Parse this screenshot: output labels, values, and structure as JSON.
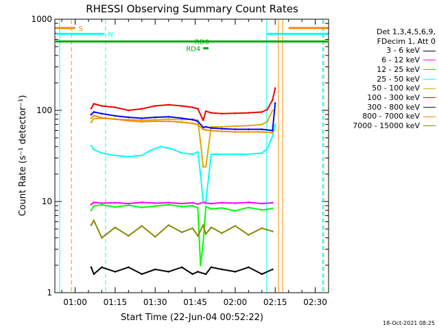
{
  "chart_data": {
    "type": "line",
    "title": "RHESSI Observing Summary Count Rates",
    "xlabel": "Start Time (22-Jun-04 00:52:22)",
    "ylabel": "Count Rate (s⁻¹ detector⁻¹)",
    "yscale": "log",
    "ylim": [
      1,
      1000
    ],
    "xlim_minutes": [
      52.4,
      155
    ],
    "x_ticks": [
      {
        "minute": 60,
        "label": "01:00"
      },
      {
        "minute": 75,
        "label": "01:15"
      },
      {
        "minute": 90,
        "label": "01:30"
      },
      {
        "minute": 105,
        "label": "01:45"
      },
      {
        "minute": 120,
        "label": "02:00"
      },
      {
        "minute": 135,
        "label": "02:15"
      },
      {
        "minute": 150,
        "label": "02:30"
      }
    ],
    "y_ticks": [
      {
        "value": 1,
        "label": "1"
      },
      {
        "value": 10,
        "label": "10"
      },
      {
        "value": 100,
        "label": "100"
      },
      {
        "value": 1000,
        "label": "1000"
      }
    ],
    "legend_header": [
      "Det 1,3,4,5,6,9,",
      "FDecim 1, Att 0"
    ],
    "series": [
      {
        "name": "3 - 6 keV",
        "color": "#000000",
        "x": [
          66,
          67,
          70,
          75,
          80,
          85,
          90,
          95,
          100,
          104,
          106,
          109,
          111,
          115,
          120,
          125,
          130,
          134
        ],
        "y": [
          1.9,
          1.6,
          1.9,
          1.7,
          1.9,
          1.6,
          1.8,
          1.7,
          1.9,
          1.6,
          1.7,
          1.6,
          1.9,
          1.8,
          1.7,
          1.9,
          1.6,
          1.8
        ]
      },
      {
        "name": "6 - 12 keV",
        "color": "#ff00ff",
        "x": [
          66,
          67,
          70,
          75,
          80,
          85,
          90,
          95,
          100,
          104,
          106,
          108,
          109,
          111,
          115,
          120,
          125,
          130,
          134
        ],
        "y": [
          9.3,
          9.8,
          9.6,
          9.7,
          9.5,
          9.8,
          9.6,
          9.7,
          9.5,
          9.7,
          9.4,
          9.8,
          9.6,
          9.5,
          9.7,
          9.6,
          9.8,
          9.5,
          9.7
        ]
      },
      {
        "name": "12 - 25 keV",
        "color": "#00ff00",
        "x": [
          66,
          67,
          70,
          75,
          80,
          85,
          90,
          95,
          100,
          104,
          106,
          107,
          108,
          109,
          111,
          115,
          120,
          125,
          130,
          134
        ],
        "y": [
          8.0,
          8.9,
          9.2,
          8.7,
          9.1,
          8.6,
          8.9,
          9.2,
          8.8,
          9.0,
          8.5,
          2.0,
          3.5,
          8.8,
          8.3,
          8.5,
          7.9,
          8.6,
          8.1,
          8.4
        ]
      },
      {
        "name": "25 - 50 keV",
        "color": "#00ffff",
        "x": [
          66,
          67,
          70,
          75,
          80,
          85,
          88,
          92,
          96,
          100,
          104,
          106,
          107,
          108,
          109,
          111,
          115,
          120,
          125,
          130,
          132,
          134,
          135
        ],
        "y": [
          41,
          37,
          34,
          32,
          31,
          32,
          36,
          40,
          38,
          34,
          33,
          35,
          20,
          10,
          10,
          33,
          33,
          33,
          33,
          34,
          38,
          52,
          70
        ]
      },
      {
        "name": "50 - 100 keV",
        "color": "#ddaa00",
        "x": [
          66,
          67,
          70,
          75,
          80,
          85,
          90,
          95,
          100,
          104,
          106,
          107,
          108,
          109,
          111,
          115,
          120,
          125,
          130,
          132,
          134
        ],
        "y": [
          74,
          81,
          82,
          80,
          79,
          78,
          79,
          80,
          79,
          80,
          78,
          45,
          24,
          24,
          66,
          66,
          67,
          68,
          70,
          75,
          100
        ]
      },
      {
        "name": "100 - 300 keV",
        "color": "#ee0000",
        "x": [
          66,
          67,
          70,
          75,
          80,
          85,
          90,
          95,
          100,
          104,
          106,
          108,
          109,
          111,
          115,
          120,
          125,
          130,
          132,
          134,
          135
        ],
        "y": [
          105,
          118,
          112,
          108,
          100,
          104,
          112,
          115,
          112,
          108,
          104,
          78,
          98,
          94,
          92,
          93,
          94,
          96,
          102,
          130,
          175
        ]
      },
      {
        "name": "300 - 800 keV",
        "color": "#0000ff",
        "x": [
          66,
          67,
          70,
          75,
          80,
          85,
          90,
          95,
          100,
          104,
          106,
          108,
          109,
          111,
          115,
          120,
          125,
          130,
          134,
          135
        ],
        "y": [
          90,
          96,
          92,
          87,
          84,
          82,
          84,
          85,
          82,
          79,
          76,
          65,
          66,
          64,
          63,
          62,
          62,
          62,
          60,
          120
        ]
      },
      {
        "name": "800 - 7000 keV",
        "color": "#ff8800",
        "x": [
          66,
          67,
          70,
          75,
          80,
          85,
          90,
          95,
          100,
          104,
          106,
          108,
          109,
          111,
          115,
          120,
          125,
          130,
          134
        ],
        "y": [
          82,
          88,
          83,
          80,
          77,
          75,
          76,
          76,
          74,
          72,
          70,
          62,
          61,
          60,
          59,
          58,
          58,
          58,
          57
        ]
      },
      {
        "name": "7000 - 15000 keV",
        "color": "#888800",
        "x": [
          66,
          67,
          70,
          75,
          80,
          85,
          90,
          95,
          100,
          104,
          106,
          108,
          109,
          111,
          115,
          120,
          125,
          130,
          134
        ],
        "y": [
          5.5,
          6.2,
          4.0,
          5.2,
          4.2,
          5.4,
          4.1,
          5.5,
          4.6,
          5.1,
          4.2,
          5.5,
          4.4,
          5.2,
          4.5,
          5.4,
          4.3,
          5.1,
          4.7
        ]
      }
    ],
    "annotations": [
      {
        "label": "S",
        "color": "#ff8800",
        "x_start": 53,
        "x_end": 60,
        "y": 800
      },
      {
        "label": "N",
        "color": "#00ffff",
        "x_start": 53,
        "x_end": 71,
        "y": 690
      },
      {
        "label": "RD0",
        "color": "#00aa00",
        "x_start": 52.4,
        "x_end": 155,
        "y": 570
      },
      {
        "label": "RD4",
        "color": "#00aa00",
        "x_start": 108,
        "x_end": 110,
        "y": 480
      },
      {
        "label": "",
        "color": "#ff8800",
        "x_start": 140,
        "x_end": 155,
        "y": 800
      },
      {
        "label": "",
        "color": "#00ffff",
        "x_start": 132,
        "x_end": 155,
        "y": 690
      }
    ],
    "vlines": [
      {
        "x": 58.6,
        "color": "#ff8800",
        "style": "dashed"
      },
      {
        "x": 71.4,
        "color": "#00ffff",
        "style": "dashed"
      },
      {
        "x": 54.2,
        "color": "#00ffff",
        "style": "solid"
      },
      {
        "x": 131.8,
        "color": "#00ffff",
        "style": "solid"
      },
      {
        "x": 136.2,
        "color": "#ff8800",
        "style": "solid"
      },
      {
        "x": 137.8,
        "color": "#ff8800",
        "style": "solid"
      },
      {
        "x": 152.8,
        "color": "#00ffff",
        "style": "dashed"
      },
      {
        "x": 153.2,
        "color": "#ff8800",
        "style": "dashed"
      }
    ]
  },
  "footer": {
    "date": "18-Oct-2021 08:25"
  }
}
